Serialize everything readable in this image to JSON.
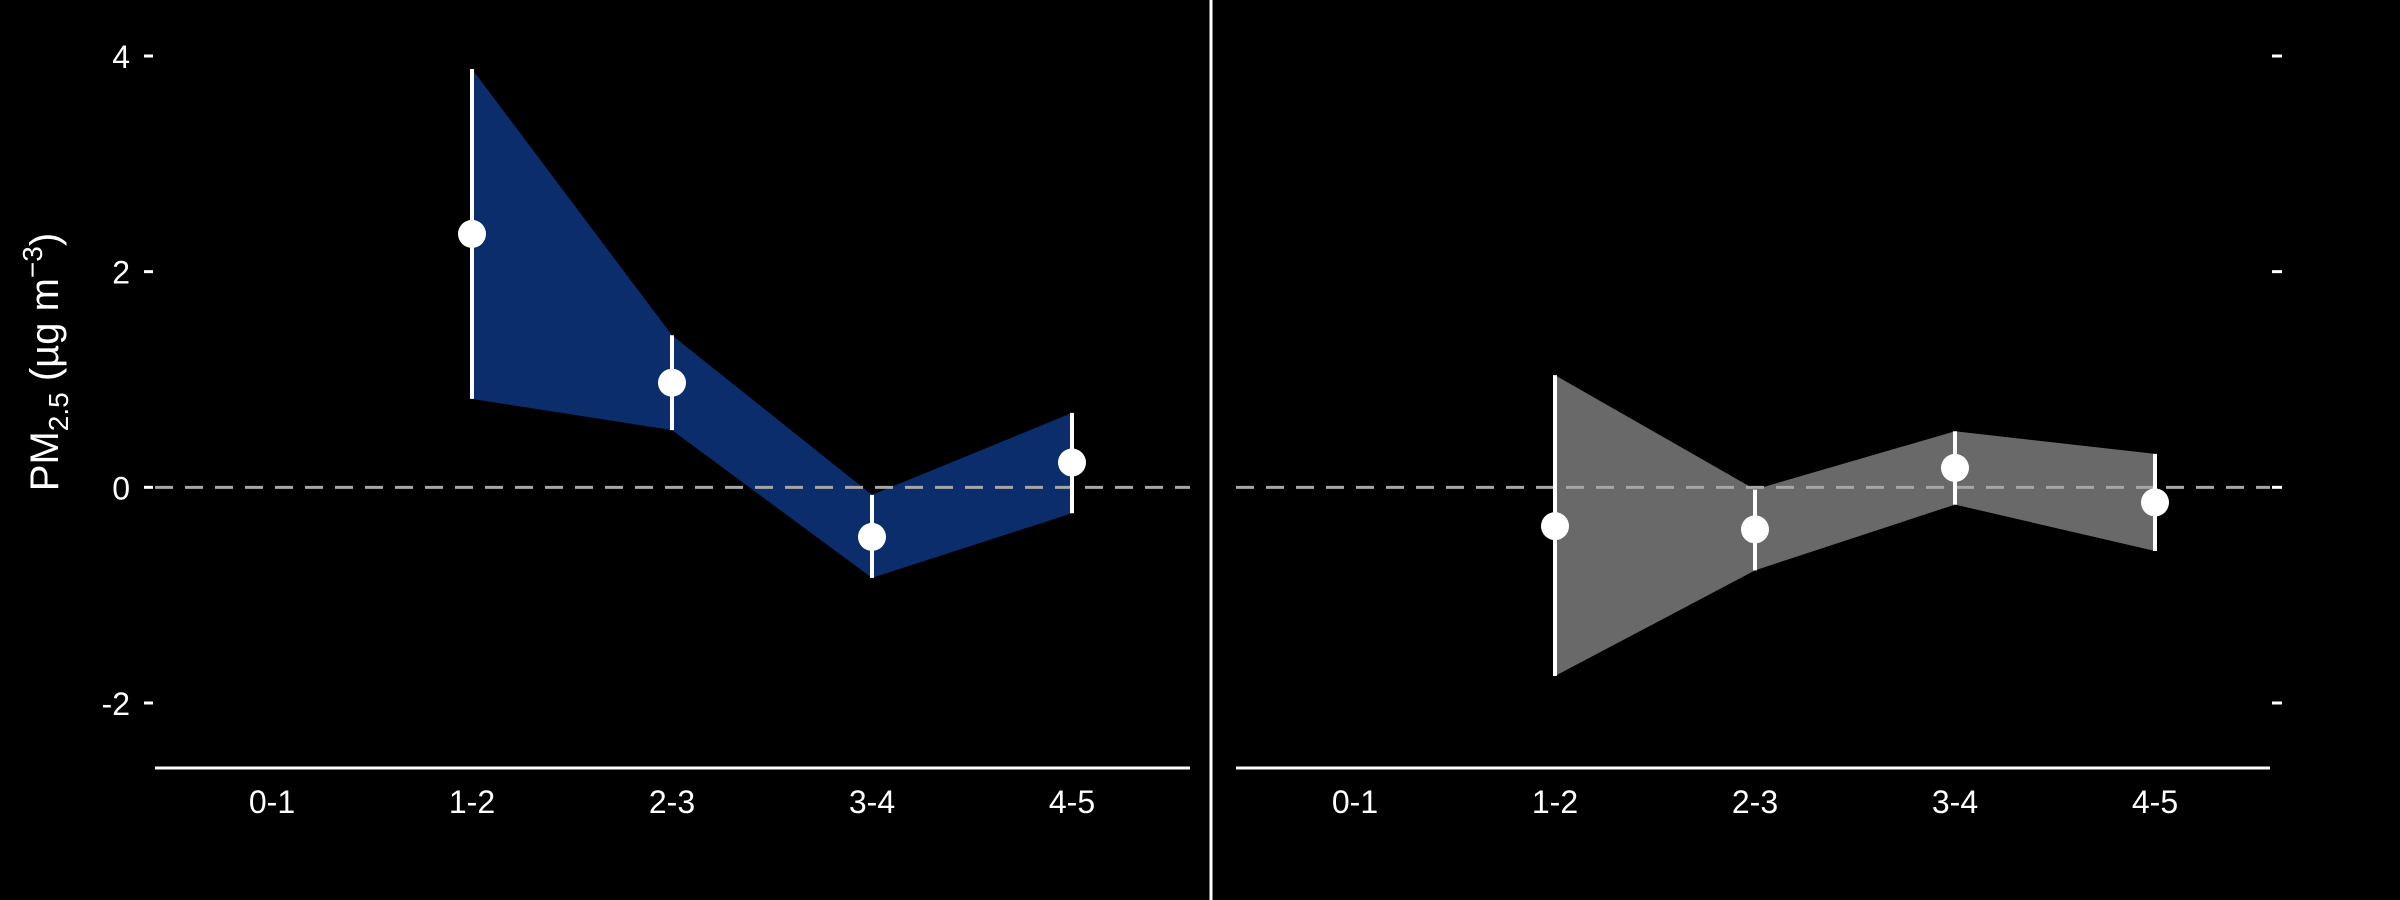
{
  "figure": {
    "background": "#000000",
    "ylabel": {
      "main": "PM",
      "sub": "2.5",
      "unit_open": " (µg m",
      "unit_sup": "−3",
      "unit_close": ")"
    }
  },
  "chart_data": [
    {
      "type": "line",
      "panel": "left",
      "categories": [
        "0-1",
        "1-2",
        "2-3",
        "3-4",
        "4-5"
      ],
      "series": [
        {
          "x": [
            "1-2",
            "2-3",
            "3-4",
            "4-5"
          ],
          "values": [
            2.35,
            0.97,
            -0.46,
            0.23
          ],
          "lower": [
            0.82,
            0.53,
            -0.84,
            -0.24
          ],
          "upper": [
            3.88,
            1.41,
            -0.07,
            0.69
          ],
          "ribbon_color": "#0b2d6b",
          "point_color": "#ffffff"
        }
      ],
      "ylim": [
        -2.6,
        4.2
      ],
      "yticks": [
        -2,
        0,
        2,
        4
      ],
      "ytick_labels": [
        "-2",
        "0",
        "2",
        "4"
      ],
      "reference_line": {
        "y": 0,
        "style": "dashed",
        "color": "#a6a6a6"
      },
      "grid": false
    },
    {
      "type": "line",
      "panel": "right",
      "categories": [
        "0-1",
        "1-2",
        "2-3",
        "3-4",
        "4-5"
      ],
      "series": [
        {
          "x": [
            "1-2",
            "2-3",
            "3-4",
            "4-5"
          ],
          "values": [
            -0.36,
            -0.39,
            0.18,
            -0.14
          ],
          "lower": [
            -1.75,
            -0.77,
            -0.16,
            -0.59
          ],
          "upper": [
            1.04,
            -0.02,
            0.52,
            0.31
          ],
          "ribbon_color": "#696969",
          "point_color": "#ffffff"
        }
      ],
      "ylim": [
        -2.6,
        4.2
      ],
      "yticks": [
        -2,
        0,
        2,
        4
      ],
      "ytick_labels": [],
      "reference_line": {
        "y": 0,
        "style": "dashed",
        "color": "#a6a6a6"
      },
      "grid": false
    }
  ]
}
